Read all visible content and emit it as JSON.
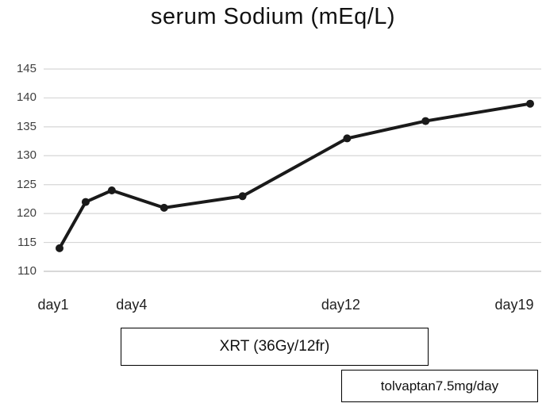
{
  "title": "serum Sodium (mEq/L)",
  "colors": {
    "line": "#1a1a1a",
    "marker": "#1a1a1a",
    "grid": "#d6d6d6",
    "axis": "#c0c0c0",
    "text": "#3f3f3f"
  },
  "chart_data": {
    "type": "line",
    "title": "serum Sodium (mEq/L)",
    "x": [
      1,
      2,
      3,
      5,
      8,
      12,
      15,
      19
    ],
    "values": [
      114,
      122,
      124,
      121,
      123,
      133,
      136,
      139
    ],
    "xlim": [
      1,
      19
    ],
    "ylim": [
      110,
      145
    ],
    "y_ticks": [
      110,
      115,
      120,
      125,
      130,
      135,
      140,
      145
    ],
    "x_tick_labels": [
      {
        "x": 1,
        "label": "day1"
      },
      {
        "x": 4,
        "label": "day4"
      },
      {
        "x": 12,
        "label": "day12"
      },
      {
        "x": 19,
        "label": "day19"
      }
    ],
    "grid": "horizontal",
    "legend": "none",
    "xlabel": "",
    "ylabel": ""
  },
  "annotations": {
    "xrt": {
      "label": "XRT (36Gy/12fr)"
    },
    "tolvaptan": {
      "label": "tolvaptan7.5mg/day"
    }
  }
}
